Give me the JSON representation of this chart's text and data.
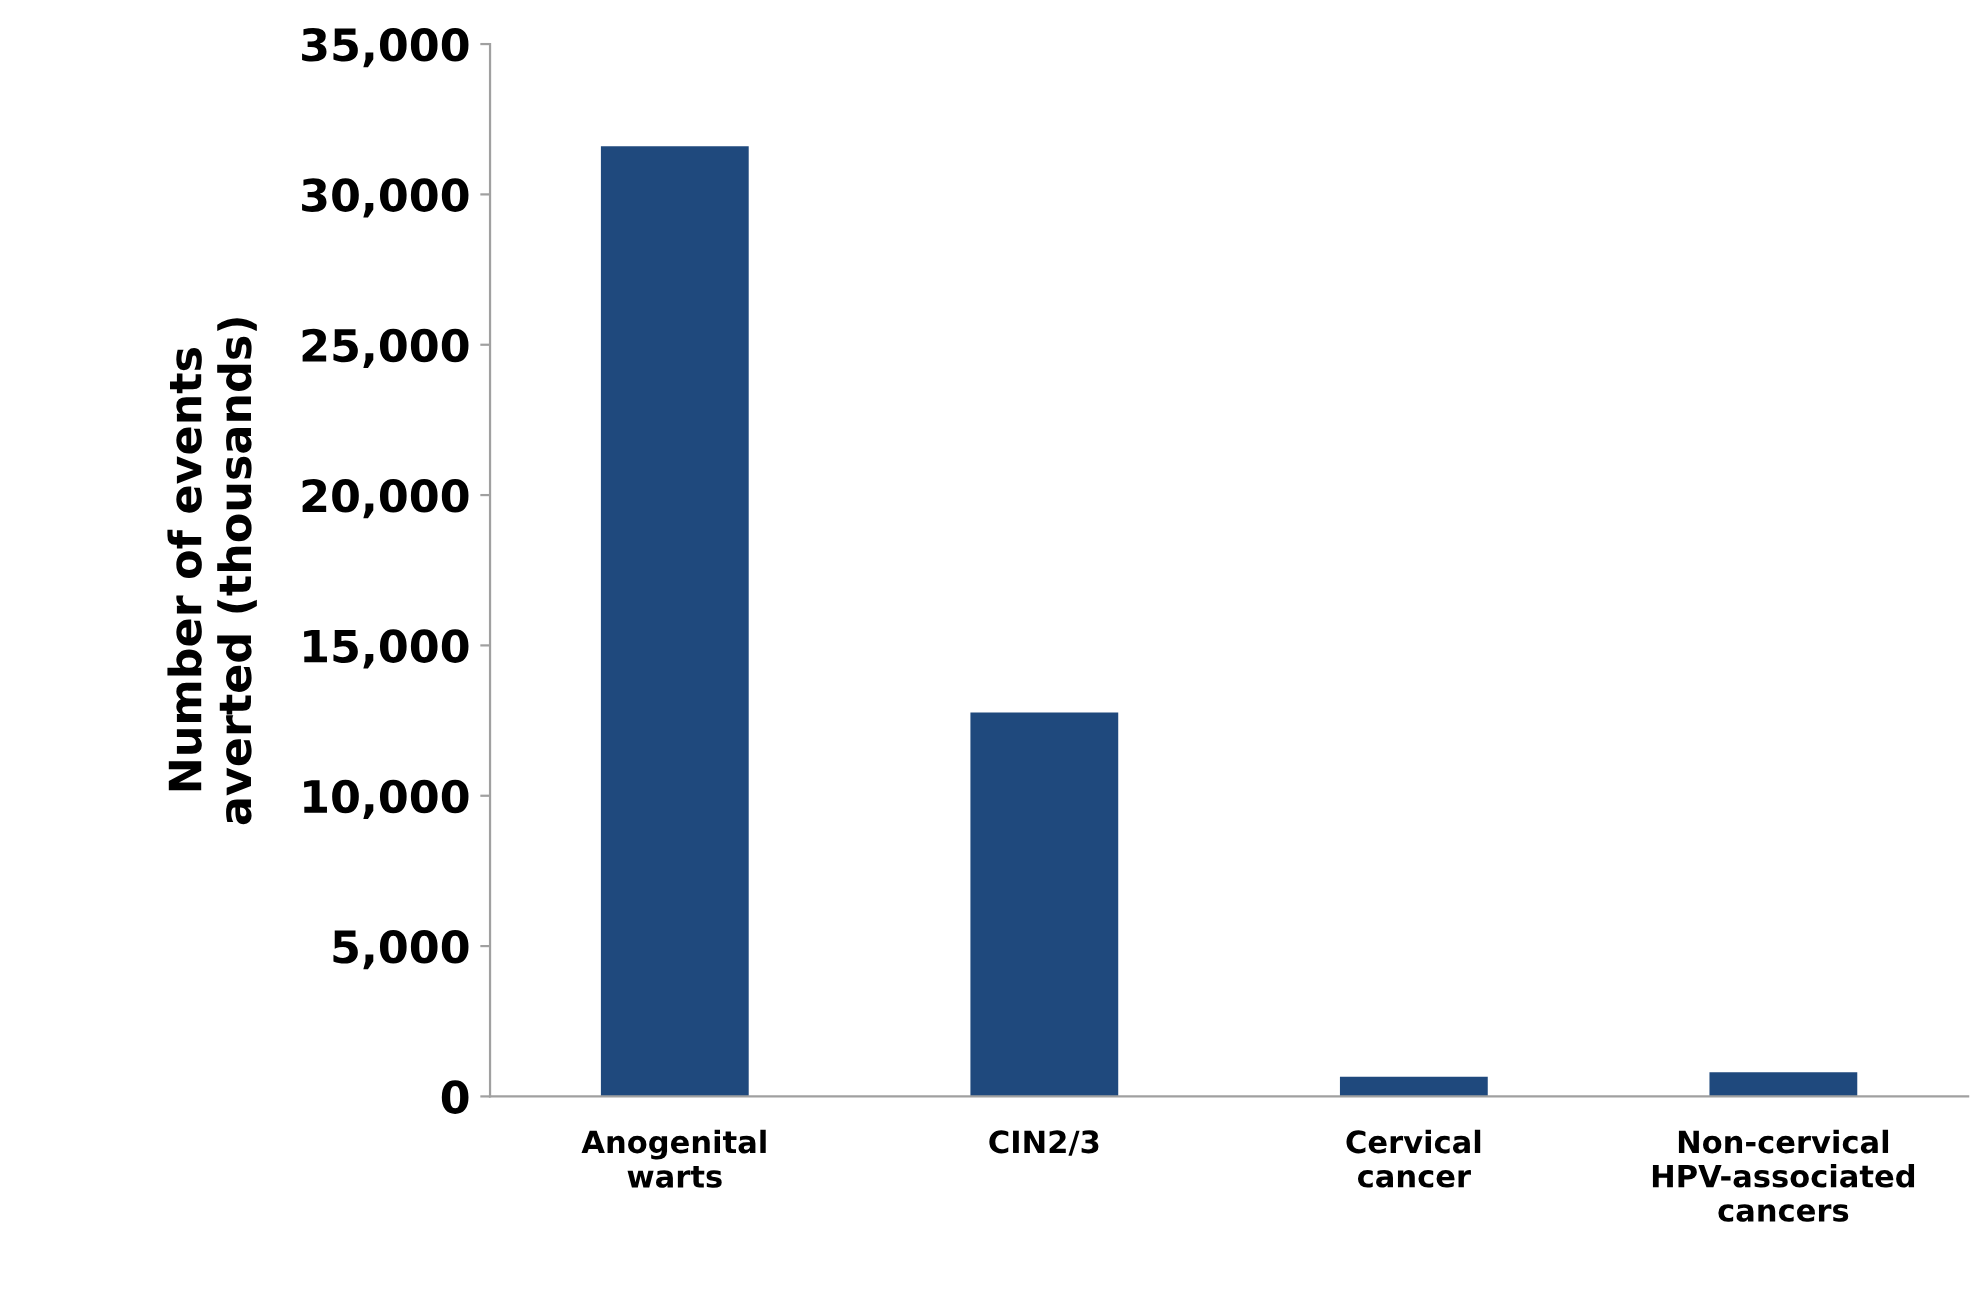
{
  "chart_data": {
    "type": "bar",
    "ylabel": "Number of events\naverted (thousands)",
    "categories": [
      "Anogenital\nwarts",
      "CIN2/3",
      "Cervical\ncancer",
      "Non-cervical\nHPV-associated\ncancers"
    ],
    "values": [
      31600,
      12770,
      650,
      800
    ],
    "color": "#1f497d",
    "ylim": [
      0,
      35000
    ],
    "yticks": [
      {
        "value": 0,
        "label": "0"
      },
      {
        "value": 5000,
        "label": "5,000"
      },
      {
        "value": 10000,
        "label": "10,000"
      },
      {
        "value": 15000,
        "label": "15,000"
      },
      {
        "value": 20000,
        "label": "20,000"
      },
      {
        "value": 25000,
        "label": "25,000"
      },
      {
        "value": 30000,
        "label": "30,000"
      },
      {
        "value": 35000,
        "label": "35,000"
      }
    ],
    "grid": false,
    "legend": false
  }
}
